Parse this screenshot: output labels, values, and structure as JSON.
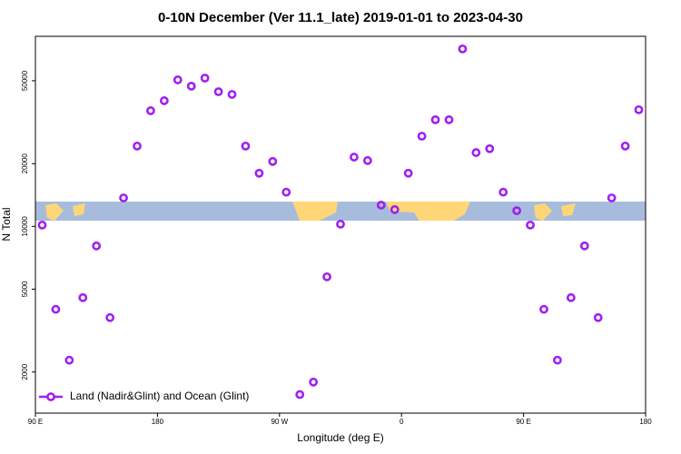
{
  "chart_data": {
    "type": "scatter",
    "title": "0-10N December (Ver 11.1_late)   2019-01-01 to 2023-04-30",
    "x_label": "Longitude (deg E)",
    "y_label": "N Total",
    "log_y": true,
    "xlim": [
      90,
      540
    ],
    "ylim": [
      1270,
      81700
    ],
    "xticks": [
      {
        "value": 90,
        "label": "90 E"
      },
      180,
      {
        "value": 270,
        "label": "90 W"
      },
      {
        "value": 360,
        "label": "0"
      },
      {
        "value": 450,
        "label": "90 E"
      },
      {
        "value": 540,
        "label": "180"
      }
    ],
    "yticks": [
      2000,
      5000,
      10000,
      20000,
      50000
    ],
    "legend_position": "bottom-left",
    "series": [
      {
        "name": "Land (Nadir&Glint) and Ocean (Glint)",
        "color": "#a020f0",
        "x": [
          95,
          105,
          115,
          125,
          135,
          145,
          155,
          165,
          175,
          185,
          195,
          205,
          215,
          225,
          235,
          245,
          255,
          265,
          275,
          285,
          295,
          305,
          315,
          325,
          335,
          345,
          355,
          365,
          375,
          385,
          395,
          405,
          415,
          425,
          435,
          445,
          455,
          465,
          475,
          485,
          495,
          505,
          515,
          525,
          535
        ],
        "values": [
          10150,
          4000,
          2280,
          4550,
          8060,
          3650,
          13700,
          24300,
          35900,
          40100,
          50500,
          47100,
          51500,
          44300,
          43000,
          24300,
          18000,
          20500,
          14600,
          1560,
          1790,
          5730,
          10250,
          21500,
          20700,
          12650,
          12040,
          18000,
          27100,
          32500,
          32500,
          71100,
          22600,
          23600,
          14600,
          11900,
          10150,
          4000,
          2280,
          4550,
          8060,
          3650,
          13700,
          24300,
          36300
        ]
      }
    ]
  }
}
